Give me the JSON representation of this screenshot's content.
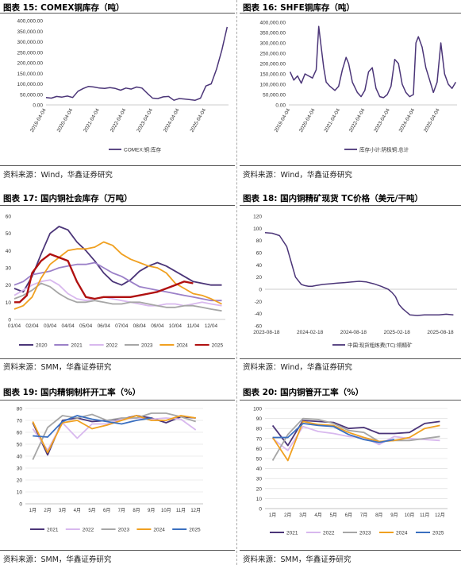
{
  "colors": {
    "purple": "#4b3578",
    "lavender": "#c9a0e8",
    "grey": "#a6a6a6",
    "orange": "#f0a020",
    "red": "#b01010",
    "blue": "#3a6fc0"
  },
  "panels": {
    "p15": {
      "title": "图表 15:  COMEX铜库存（吨）",
      "source": "资料来源：Wind，华鑫证券研究"
    },
    "p16": {
      "title": "图表 16:  SHFE铜库存（吨）",
      "source": "资料来源：Wind，华鑫证券研究"
    },
    "p17": {
      "title": "图表 17:  国内铜社会库存（万吨）",
      "source": "资料来源：SMM，华鑫证券研究"
    },
    "p18": {
      "title": "图表 18:  国内铜精矿现货 TC价格（美元/干吨）",
      "source": "资料来源：Wind，华鑫证券研究"
    },
    "p19": {
      "title": "图表 19:  国内精铜制杆开工率（%）",
      "source": "资料来源：SMM，华鑫证券研究"
    },
    "p20": {
      "title": "图表 20:  国内铜管开工率（%）",
      "source": "资料来源：SMM，华鑫证券研究"
    }
  },
  "chart_data": [
    {
      "id": "p15",
      "type": "line",
      "ylim": [
        0,
        400000
      ],
      "yticks": [
        "0.00",
        "50,000.00",
        "100,000.00",
        "150,000.00",
        "200,000.00",
        "250,000.00",
        "300,000.00",
        "350,000.00",
        "400,000.00"
      ],
      "xticks": [
        "2019-04-04",
        "2020-04-04",
        "2021-04-04",
        "2022-04-04",
        "2023-04-04",
        "2024-04-04",
        "2025-04-04"
      ],
      "xlim": [
        2019.0,
        2025.85
      ],
      "series": [
        {
          "name": "COMEX:铜:库存",
          "color": "#4b3578",
          "x": [
            2019.0,
            2019.2,
            2019.4,
            2019.6,
            2019.8,
            2020.0,
            2020.2,
            2020.4,
            2020.6,
            2020.8,
            2021.0,
            2021.2,
            2021.4,
            2021.6,
            2021.8,
            2022.0,
            2022.2,
            2022.4,
            2022.6,
            2022.8,
            2023.0,
            2023.2,
            2023.4,
            2023.6,
            2023.8,
            2024.0,
            2024.2,
            2024.4,
            2024.6,
            2024.8,
            2025.0,
            2025.2,
            2025.4,
            2025.6,
            2025.8
          ],
          "y": [
            35000,
            32000,
            40000,
            37000,
            42000,
            35000,
            65000,
            78000,
            88000,
            85000,
            80000,
            78000,
            82000,
            78000,
            70000,
            80000,
            75000,
            85000,
            80000,
            55000,
            32000,
            30000,
            38000,
            40000,
            22000,
            30000,
            28000,
            25000,
            22000,
            32000,
            90000,
            100000,
            170000,
            260000,
            370000
          ]
        }
      ]
    },
    {
      "id": "p16",
      "type": "line",
      "ylim": [
        0,
        400000
      ],
      "yticks": [
        "0.00",
        "50,000.00",
        "100,000.00",
        "150,000.00",
        "200,000.00",
        "250,000.00",
        "300,000.00",
        "350,000.00",
        "400,000.00"
      ],
      "xticks": [
        "2019-04-04",
        "2020-04-04",
        "2021-04-04",
        "2022-04-04",
        "2023-04-04",
        "2024-04-04",
        "2025-04-04"
      ],
      "xlim": [
        2018.95,
        2025.7
      ],
      "series": [
        {
          "name": "库存小计:阴极铜:总计",
          "color": "#4b3578",
          "x": [
            2019.0,
            2019.15,
            2019.3,
            2019.45,
            2019.6,
            2019.75,
            2019.9,
            2020.05,
            2020.15,
            2020.25,
            2020.35,
            2020.45,
            2020.6,
            2020.8,
            2020.95,
            2021.1,
            2021.25,
            2021.35,
            2021.5,
            2021.7,
            2021.85,
            2022.0,
            2022.15,
            2022.3,
            2022.45,
            2022.6,
            2022.75,
            2022.9,
            2023.05,
            2023.2,
            2023.35,
            2023.5,
            2023.65,
            2023.8,
            2023.95,
            2024.05,
            2024.15,
            2024.3,
            2024.45,
            2024.6,
            2024.75,
            2024.9,
            2025.05,
            2025.2,
            2025.35,
            2025.5,
            2025.65
          ],
          "y": [
            160000,
            120000,
            140000,
            105000,
            150000,
            140000,
            130000,
            170000,
            380000,
            280000,
            180000,
            110000,
            90000,
            70000,
            90000,
            170000,
            230000,
            200000,
            110000,
            60000,
            40000,
            70000,
            160000,
            180000,
            80000,
            40000,
            35000,
            50000,
            90000,
            220000,
            200000,
            100000,
            60000,
            40000,
            50000,
            300000,
            330000,
            280000,
            180000,
            120000,
            60000,
            110000,
            300000,
            150000,
            100000,
            80000,
            110000
          ]
        }
      ]
    },
    {
      "id": "p17",
      "type": "line",
      "ylim": [
        0,
        60
      ],
      "yticks": [
        "0",
        "10",
        "20",
        "30",
        "40",
        "50",
        "60"
      ],
      "xticks": [
        "01/04",
        "02/04",
        "03/04",
        "04/04",
        "05/04",
        "06/04",
        "07/04",
        "08/04",
        "09/04",
        "10/04",
        "11/04",
        "12/04"
      ],
      "xlim": [
        1,
        12.8
      ],
      "series": [
        {
          "name": "2020",
          "color": "#4b3578",
          "x": [
            1,
            1.5,
            2,
            2.5,
            3,
            3.5,
            4,
            4.5,
            5,
            5.5,
            6,
            6.5,
            7,
            7.5,
            8,
            8.5,
            9,
            9.5,
            10,
            10.5,
            11,
            11.5,
            12,
            12.6
          ],
          "y": [
            18,
            16,
            25,
            38,
            50,
            54,
            52,
            45,
            40,
            34,
            27,
            22,
            20,
            23,
            28,
            31,
            33,
            31,
            28,
            25,
            22,
            21,
            20,
            20
          ]
        },
        {
          "name": "2021",
          "color": "#9b80c8",
          "x": [
            1,
            1.5,
            2,
            2.5,
            3,
            3.5,
            4,
            4.5,
            5,
            5.5,
            6,
            6.5,
            7,
            7.5,
            8,
            8.5,
            9,
            9.5,
            10,
            10.5,
            11,
            11.5,
            12,
            12.6
          ],
          "y": [
            20,
            22,
            26,
            27,
            28,
            30,
            31,
            32,
            32,
            33,
            30,
            27,
            25,
            22,
            19,
            18,
            17,
            16,
            15,
            14,
            13,
            12,
            11,
            11
          ]
        },
        {
          "name": "2022",
          "color": "#d8b8ee",
          "x": [
            1,
            1.5,
            2,
            2.5,
            3,
            3.5,
            4,
            4.5,
            5,
            5.5,
            6,
            6.5,
            7,
            7.5,
            8,
            8.5,
            9,
            9.5,
            10,
            10.5,
            11,
            11.5,
            12,
            12.6
          ],
          "y": [
            14,
            17,
            20,
            22,
            23,
            20,
            15,
            12,
            11,
            12,
            13,
            12,
            11,
            10,
            9,
            8,
            8,
            9,
            9,
            8,
            9,
            10,
            9,
            8
          ]
        },
        {
          "name": "2023",
          "color": "#a6a6a6",
          "x": [
            1,
            1.5,
            2,
            2.5,
            3,
            3.5,
            4,
            4.5,
            5,
            5.5,
            6,
            6.5,
            7,
            7.5,
            8,
            8.5,
            9,
            9.5,
            10,
            10.5,
            11,
            11.5,
            12,
            12.6
          ],
          "y": [
            12,
            14,
            17,
            21,
            19,
            15,
            12,
            10,
            10,
            11,
            10,
            9,
            9,
            10,
            10,
            9,
            8,
            7,
            7,
            8,
            8,
            7,
            6,
            5
          ]
        },
        {
          "name": "2024",
          "color": "#f0a020",
          "x": [
            1,
            1.5,
            2,
            2.5,
            3,
            3.5,
            4,
            4.5,
            5,
            5.5,
            6,
            6.5,
            7,
            7.5,
            8,
            8.5,
            9,
            9.5,
            10,
            10.5,
            11,
            11.5,
            12,
            12.6
          ],
          "y": [
            6,
            8,
            13,
            24,
            32,
            36,
            40,
            41,
            41,
            42,
            45,
            43,
            38,
            35,
            33,
            31,
            30,
            27,
            21,
            18,
            15,
            14,
            12,
            9
          ]
        },
        {
          "name": "2025",
          "color": "#b01010",
          "x": [
            1,
            1.3,
            1.7,
            2,
            2.5,
            3,
            3.5,
            4,
            4.5,
            5,
            5.5,
            6,
            6.5,
            7,
            7.5,
            8,
            8.5,
            9,
            9.5,
            10,
            10.5,
            11
          ],
          "y": [
            10,
            10,
            14,
            27,
            34,
            38,
            36,
            34,
            22,
            13,
            12,
            13,
            13,
            13,
            13,
            14,
            15,
            16,
            18,
            20,
            22,
            21
          ]
        }
      ]
    },
    {
      "id": "p18",
      "type": "line",
      "ylim": [
        -60,
        120
      ],
      "yticks": [
        "-60",
        "-40",
        "-20",
        "0",
        "20",
        "40",
        "60",
        "80",
        "100",
        "120"
      ],
      "xticks": [
        "2023-08-18",
        "2024-02-18",
        "2024-08-18",
        "2025-02-18",
        "2025-08-18"
      ],
      "xlim": [
        0,
        26.5
      ],
      "series": [
        {
          "name": "中国:现货粗炼费(TC):铜精矿",
          "color": "#4b3578",
          "x": [
            0,
            1,
            2,
            3,
            3.6,
            4.2,
            5,
            5.5,
            6,
            6.5,
            7,
            8,
            9,
            10,
            11,
            12,
            13,
            14,
            15,
            16,
            17,
            17.5,
            18,
            18.5,
            19,
            20,
            21,
            22,
            23,
            24,
            25,
            26
          ],
          "y": [
            93,
            92,
            88,
            70,
            45,
            20,
            8,
            6,
            5,
            5,
            6,
            8,
            9,
            10,
            11,
            12,
            13,
            12,
            9,
            5,
            0,
            -5,
            -12,
            -25,
            -32,
            -42,
            -43,
            -42,
            -42,
            -42,
            -41,
            -42
          ]
        }
      ]
    },
    {
      "id": "p19",
      "type": "line",
      "ylim": [
        0,
        80
      ],
      "yticks": [
        "0",
        "10",
        "20",
        "30",
        "40",
        "50",
        "60",
        "70",
        "80"
      ],
      "xticks": [
        "1月",
        "2月",
        "3月",
        "4月",
        "5月",
        "6月",
        "7月",
        "8月",
        "9月",
        "10月",
        "11月",
        "12月"
      ],
      "series": [
        {
          "name": "2021",
          "color": "#4b3578",
          "values": [
            68,
            41,
            70,
            72,
            69,
            70,
            71,
            74,
            72,
            68,
            73,
            72
          ]
        },
        {
          "name": "2022",
          "color": "#d8b8ee",
          "values": [
            63,
            45,
            68,
            55,
            67,
            67,
            71,
            72,
            71,
            72,
            71,
            62
          ]
        },
        {
          "name": "2023",
          "color": "#a6a6a6",
          "values": [
            37,
            64,
            74,
            72,
            75,
            70,
            72,
            72,
            76,
            76,
            73,
            69
          ]
        },
        {
          "name": "2024",
          "color": "#f0a020",
          "values": [
            69,
            43,
            68,
            70,
            63,
            66,
            70,
            74,
            70,
            70,
            74,
            72
          ]
        },
        {
          "name": "2025",
          "color": "#3a6fc0",
          "values": [
            57,
            56,
            69,
            74,
            71,
            69,
            67,
            70,
            72,
            null,
            null,
            null
          ]
        }
      ]
    },
    {
      "id": "p20",
      "type": "line",
      "ylim": [
        0,
        100
      ],
      "yticks": [
        "0",
        "10",
        "20",
        "30",
        "40",
        "50",
        "60",
        "70",
        "80",
        "90",
        "100"
      ],
      "xticks": [
        "1月",
        "2月",
        "3月",
        "4月",
        "5月",
        "6月",
        "7月",
        "8月",
        "9月",
        "10月",
        "11月",
        "12月"
      ],
      "series": [
        {
          "name": "2021",
          "color": "#4b3578",
          "values": [
            83,
            63,
            88,
            87,
            86,
            80,
            81,
            75,
            75,
            76,
            85,
            87
          ]
        },
        {
          "name": "2022",
          "color": "#d8b8ee",
          "values": [
            70,
            58,
            82,
            77,
            75,
            72,
            71,
            64,
            72,
            70,
            69,
            68
          ]
        },
        {
          "name": "2023",
          "color": "#a6a6a6",
          "values": [
            48,
            74,
            90,
            89,
            85,
            78,
            76,
            67,
            68,
            68,
            70,
            72
          ]
        },
        {
          "name": "2024",
          "color": "#f0a020",
          "values": [
            71,
            48,
            87,
            84,
            83,
            76,
            71,
            67,
            68,
            71,
            80,
            83
          ]
        },
        {
          "name": "2025",
          "color": "#3a6fc0",
          "values": [
            71,
            71,
            85,
            83,
            82,
            74,
            69,
            66,
            69,
            null,
            null,
            null
          ]
        }
      ]
    }
  ]
}
